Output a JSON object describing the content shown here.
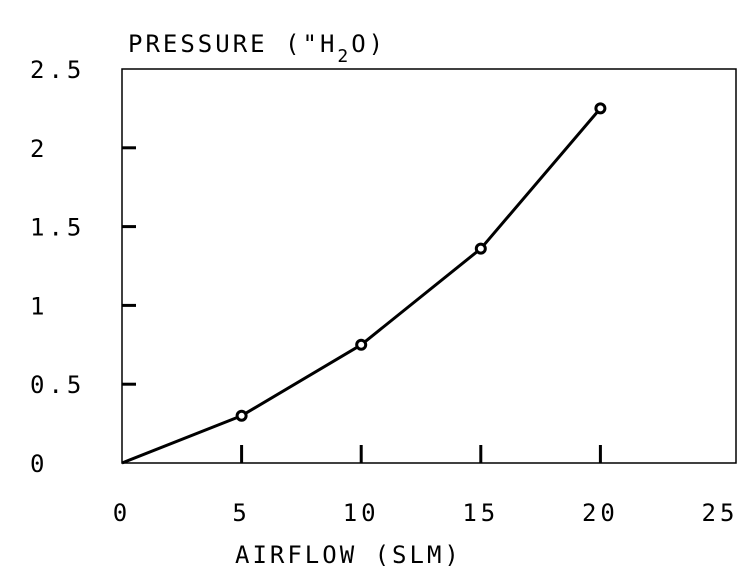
{
  "chart_data": {
    "type": "line",
    "title": "PRESSURE (\"H2O)",
    "title_parts": {
      "before": "PRESSURE (\"H",
      "sub": "2",
      "after": "O)"
    },
    "xlabel": "AIRFLOW (SLM)",
    "ylabel": "",
    "xlim": [
      0,
      25
    ],
    "ylim": [
      0,
      2.5
    ],
    "x_ticks": [
      "0",
      "5",
      "10",
      "15",
      "20",
      "25"
    ],
    "y_ticks": [
      "0",
      "0.5",
      "1",
      "1.5",
      "2",
      "2.5"
    ],
    "x_tick_values": [
      0,
      5,
      10,
      15,
      20,
      25
    ],
    "y_tick_values": [
      0,
      0.5,
      1,
      1.5,
      2,
      2.5
    ],
    "grid": false,
    "series": [
      {
        "x": [
          0,
          5,
          10,
          15,
          20
        ],
        "y": [
          0,
          0.3,
          0.75,
          1.36,
          2.25
        ],
        "markers": [
          false,
          true,
          true,
          true,
          true
        ]
      }
    ]
  }
}
